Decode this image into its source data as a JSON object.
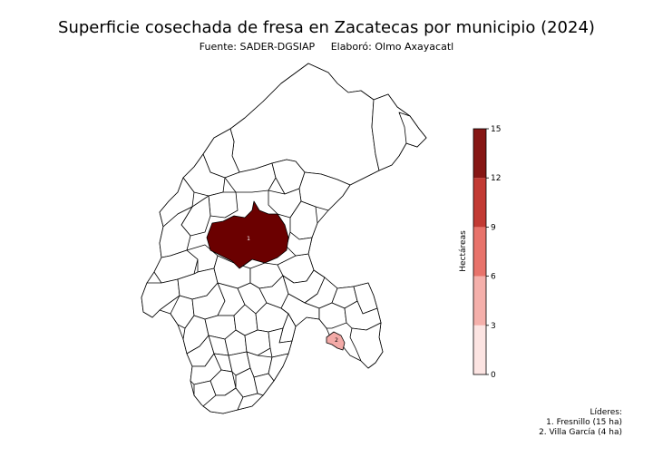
{
  "title": "Superficie cosechada de fresa en Zacatecas por municipio (2024)",
  "subtitle": {
    "source": "Fuente: SADER-DGSIAP",
    "author": "Elaboró: Olmo Axayacatl"
  },
  "colorbar": {
    "label": "Hectáreas",
    "ticks": [
      "0",
      "3",
      "6",
      "9",
      "12",
      "15"
    ],
    "range": [
      0,
      15
    ],
    "bin_colors": [
      "#fce4e2",
      "#f5b0ab",
      "#e8736b",
      "#c23a33",
      "#861614"
    ]
  },
  "map": {
    "highlighted": [
      {
        "rank": "1",
        "municipio": "Fresnillo",
        "hectareas": 15,
        "color": "#6b0000"
      },
      {
        "rank": "2",
        "municipio": "Villa García",
        "hectareas": 4,
        "color": "#f3aaa7"
      }
    ],
    "base_fill": "#ffffff",
    "outline": "#000000"
  },
  "leaders": {
    "heading": "Líderes:",
    "items": [
      "1. Fresnillo (15 ha)",
      "2. Villa García (4 ha)"
    ]
  }
}
